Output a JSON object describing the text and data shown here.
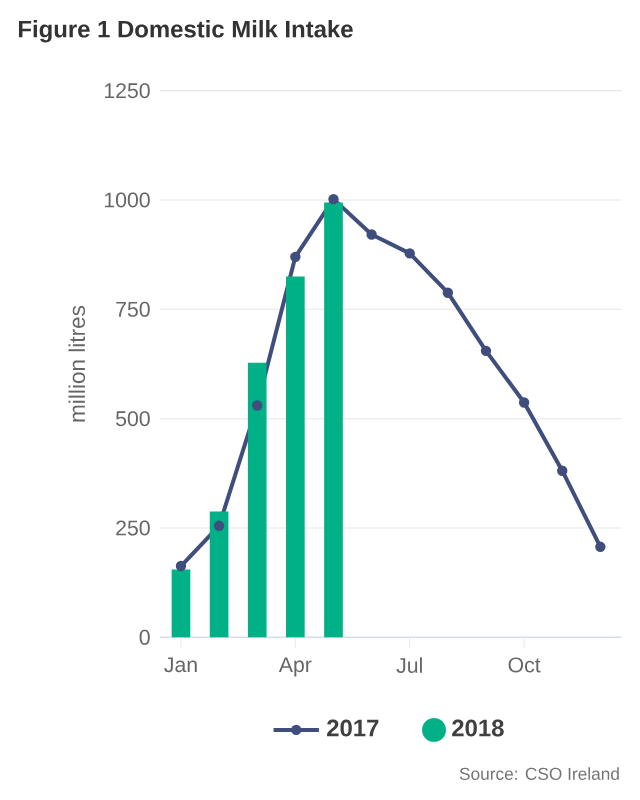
{
  "chart_data": {
    "type": "bar",
    "title": "Figure 1 Domestic Milk Intake",
    "categories": [
      "Jan",
      null,
      null,
      "Apr",
      null,
      null,
      "Jul",
      null,
      null,
      "Oct",
      null,
      null
    ],
    "series": [
      {
        "name": "2017",
        "type": "line",
        "marker": "circle",
        "color": "#3f4e7d",
        "values": [
          163,
          255,
          530,
          870,
          1002,
          921,
          878,
          788,
          655,
          537,
          381,
          207
        ]
      },
      {
        "name": "2018",
        "color": "#00b086",
        "values": [
          155,
          288,
          628,
          825,
          994,
          null,
          null,
          null,
          null,
          null,
          null,
          null
        ]
      }
    ],
    "ylabel": "million litres",
    "ylim": [
      0,
      1250
    ],
    "yticks": [
      0,
      250,
      500,
      750,
      1000,
      1250
    ],
    "grid": "y",
    "legend": "bottom",
    "annotations": [
      "Source: CSO Ireland"
    ]
  }
}
